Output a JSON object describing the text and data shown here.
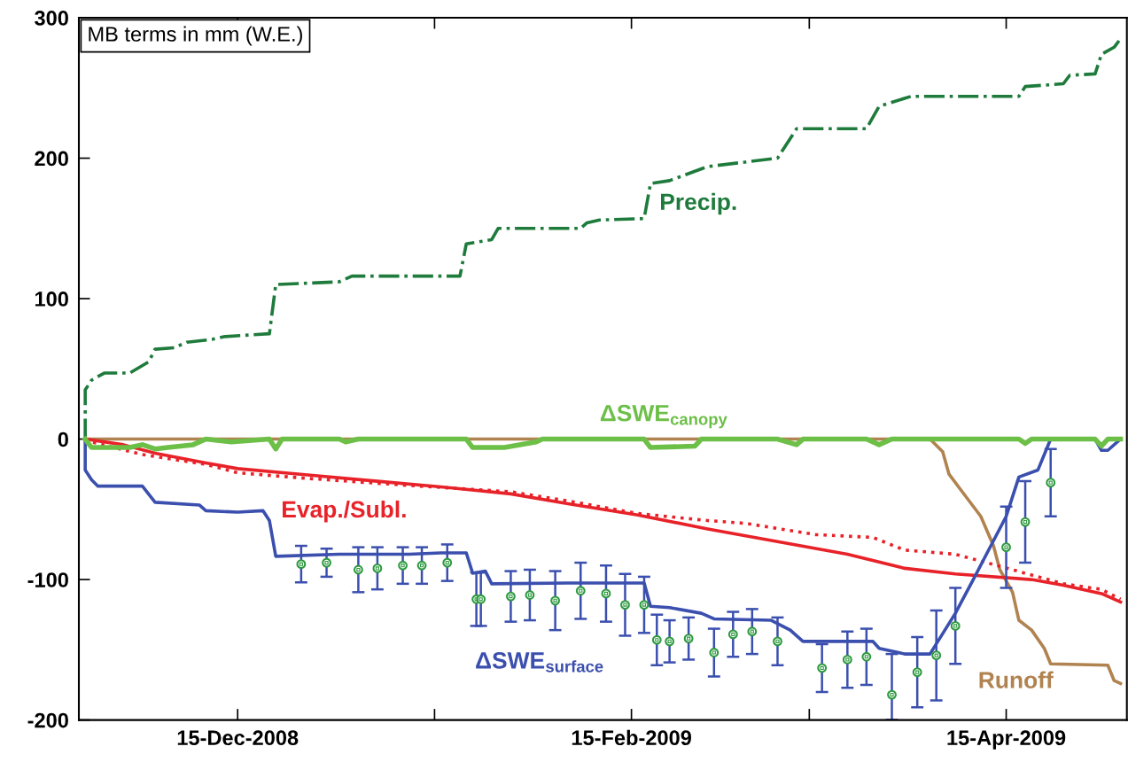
{
  "chart_data": {
    "type": "line",
    "title": "MB terms in mm (W.E.)",
    "xlim": [
      "2008-11-20",
      "2009-05-04"
    ],
    "xticks": [
      {
        "value": "2008-12-15",
        "label": "15-Dec-2008"
      },
      {
        "value": "2009-01-15",
        "label": null
      },
      {
        "value": "2009-02-15",
        "label": "15-Feb-2009"
      },
      {
        "value": "2009-03-15",
        "label": null
      },
      {
        "value": "2009-04-15",
        "label": "15-Apr-2009"
      }
    ],
    "ylim": [
      -200,
      300
    ],
    "yticks": [
      -200,
      -100,
      0,
      100,
      200,
      300
    ],
    "grid": false,
    "legend": false,
    "series": [
      {
        "name": "Precip.",
        "color": "#1e7b3c",
        "line_style": "dashdot",
        "marker": "none",
        "x": [
          "2008-11-21",
          "2008-11-21",
          "2008-11-22",
          "2008-11-24",
          "2008-11-28",
          "2008-12-01",
          "2008-12-02",
          "2008-12-05",
          "2008-12-07",
          "2008-12-11",
          "2008-12-13",
          "2008-12-20",
          "2008-12-21",
          "2008-12-31",
          "2009-01-02",
          "2009-01-19",
          "2009-01-20",
          "2009-01-24",
          "2009-01-25",
          "2009-02-07",
          "2009-02-08",
          "2009-02-10",
          "2009-02-17",
          "2009-02-18",
          "2009-02-21",
          "2009-02-27",
          "2009-03-10",
          "2009-03-13",
          "2009-03-24",
          "2009-03-26",
          "2009-03-31",
          "2009-04-17",
          "2009-04-18",
          "2009-04-24",
          "2009-04-25",
          "2009-04-29",
          "2009-04-30",
          "2009-05-02",
          "2009-05-03"
        ],
        "values": [
          0,
          35,
          42,
          47,
          47,
          55,
          64,
          65,
          69,
          71,
          73,
          75,
          110,
          112,
          116,
          116,
          139,
          142,
          150,
          150,
          154,
          156,
          157,
          182,
          184,
          194,
          200,
          221,
          221,
          237,
          244,
          244,
          251,
          253,
          259,
          260,
          274,
          279,
          285
        ]
      },
      {
        "name": "Runoff",
        "color": "#b08350",
        "line_style": "solid",
        "marker": "none",
        "x": [
          "2008-11-21",
          "2009-04-03",
          "2009-04-05",
          "2009-04-06",
          "2009-04-08",
          "2009-04-11",
          "2009-04-13",
          "2009-04-14",
          "2009-04-16",
          "2009-04-17",
          "2009-04-19",
          "2009-04-21",
          "2009-04-22",
          "2009-05-01",
          "2009-05-02",
          "2009-05-03"
        ],
        "values": [
          0,
          0,
          -9,
          -25,
          -37,
          -55,
          -76,
          -93,
          -109,
          -129,
          -136,
          -149,
          -160,
          -161,
          -172,
          -174
        ]
      },
      {
        "color": "#e82229",
        "line_style": "dotted",
        "marker": "none",
        "x": [
          "2008-11-21",
          "2008-11-22",
          "2008-11-30",
          "2008-12-10",
          "2008-12-15",
          "2008-12-26",
          "2009-01-11",
          "2009-01-27",
          "2009-02-05",
          "2009-02-16",
          "2009-02-27",
          "2009-03-05",
          "2009-03-16",
          "2009-03-25",
          "2009-03-30",
          "2009-04-07",
          "2009-04-16",
          "2009-04-24",
          "2009-04-30",
          "2009-05-03"
        ],
        "values": [
          0,
          -2,
          -11,
          -18,
          -24,
          -28,
          -33,
          -37.5,
          -44,
          -53,
          -58,
          -60,
          -68,
          -70,
          -79,
          -82,
          -93,
          -103,
          -107,
          -114
        ]
      },
      {
        "name": "Evap./Subl.",
        "color": "#e82229",
        "line_style": "solid",
        "marker": "none",
        "x": [
          "2008-11-21",
          "2008-11-27",
          "2008-12-02",
          "2008-12-10",
          "2008-12-15",
          "2008-12-26",
          "2009-01-06",
          "2009-01-16",
          "2009-01-27",
          "2009-02-05",
          "2009-02-16",
          "2009-02-27",
          "2009-03-10",
          "2009-03-21",
          "2009-03-30",
          "2009-04-07",
          "2009-04-19",
          "2009-04-24",
          "2009-04-30",
          "2009-05-03"
        ],
        "values": [
          0,
          -4,
          -10,
          -17,
          -21,
          -25.5,
          -30,
          -34,
          -39,
          -46,
          -54,
          -64,
          -73,
          -82,
          -92,
          -96,
          -100,
          -104,
          -110,
          -116
        ]
      },
      {
        "name": "ΔSWE$_{surface}$",
        "color": "#3b4fae",
        "line_style": "solid",
        "marker": "none",
        "x": [
          "2008-11-21",
          "2008-11-21",
          "2008-11-22",
          "2008-11-23",
          "2008-11-30",
          "2008-12-02",
          "2008-12-09",
          "2008-12-10",
          "2008-12-15",
          "2008-12-19",
          "2008-12-20",
          "2008-12-21",
          "2008-12-31",
          "2009-01-11",
          "2009-01-16",
          "2009-01-20",
          "2009-01-21",
          "2009-01-23",
          "2009-01-24",
          "2009-02-05",
          "2009-02-17",
          "2009-02-18",
          "2009-02-21",
          "2009-02-26",
          "2009-02-28",
          "2009-03-09",
          "2009-03-12",
          "2009-03-14",
          "2009-03-25",
          "2009-03-26",
          "2009-03-30",
          "2009-04-03",
          "2009-04-07",
          "2009-04-10",
          "2009-04-12",
          "2009-04-15",
          "2009-04-17",
          "2009-04-20",
          "2009-04-22",
          "2009-04-29",
          "2009-04-30",
          "2009-05-01",
          "2009-05-03"
        ],
        "values": [
          0,
          -22,
          -29,
          -33.5,
          -33.5,
          -45,
          -47,
          -51,
          -52,
          -51,
          -58,
          -83.5,
          -82,
          -82,
          -81,
          -81,
          -95.5,
          -94,
          -103,
          -102.5,
          -102.5,
          -119,
          -120,
          -124,
          -128,
          -129,
          -136,
          -144,
          -144,
          -149,
          -153,
          -153,
          -124,
          -98.5,
          -81,
          -55,
          -27,
          -22,
          0,
          0,
          -8,
          -8,
          0
        ]
      },
      {
        "color": "#2e9a40",
        "type": "scatter",
        "marker": "circle",
        "x": [
          "2008-12-25",
          "2008-12-29",
          "2009-01-03",
          "2009-01-06",
          "2009-01-10",
          "2009-01-13",
          "2009-01-17",
          "2009-01-21T14:00",
          "2009-01-22T07:00",
          "2009-01-27",
          "2009-01-30",
          "2009-02-03",
          "2009-02-07",
          "2009-02-11",
          "2009-02-14",
          "2009-02-17",
          "2009-02-19",
          "2009-02-21",
          "2009-02-24",
          "2009-02-28",
          "2009-03-03",
          "2009-03-06",
          "2009-03-10",
          "2009-03-17",
          "2009-03-21",
          "2009-03-24",
          "2009-03-28",
          "2009-04-01",
          "2009-04-04",
          "2009-04-07",
          "2009-04-15",
          "2009-04-18",
          "2009-04-22"
        ],
        "values": [
          -89,
          -88,
          -93,
          -92,
          -90,
          -90,
          -88,
          -114,
          -114,
          -112,
          -111,
          -115,
          -108,
          -110,
          -118,
          -118,
          -143,
          -144,
          -142,
          -152,
          -139,
          -137,
          -144,
          -163,
          -157,
          -155,
          -182,
          -166,
          -154,
          -133,
          -77,
          -59,
          -31
        ],
        "errors": [
          13,
          10,
          16,
          15,
          13,
          13,
          13,
          19,
          19,
          18,
          18,
          21,
          20,
          20,
          22,
          20,
          18,
          15,
          15,
          17,
          16,
          16,
          17,
          17,
          20,
          20,
          [
            -200,
            -153
          ],
          25,
          32,
          27,
          29,
          29,
          24
        ]
      },
      {
        "name": "ΔSWE$_{canopy}$",
        "color": "#6cbf47",
        "line_style": "solid",
        "marker": "none",
        "x": [
          "2008-11-21",
          "2008-11-22",
          "2008-11-28",
          "2008-11-30",
          "2008-12-02",
          "2008-12-04",
          "2008-12-08",
          "2008-12-10",
          "2008-12-14",
          "2008-12-20",
          "2008-12-21",
          "2008-12-22",
          "2008-12-31",
          "2009-01-01",
          "2009-01-03",
          "2009-01-20",
          "2009-01-21",
          "2009-01-26",
          "2009-01-31",
          "2009-02-01",
          "2009-02-05",
          "2009-02-17",
          "2009-02-18",
          "2009-02-25",
          "2009-02-26",
          "2009-03-10",
          "2009-03-13",
          "2009-03-14",
          "2009-03-24",
          "2009-03-26",
          "2009-03-28",
          "2009-04-17",
          "2009-04-18",
          "2009-04-19",
          "2009-04-29",
          "2009-04-30",
          "2009-05-01",
          "2009-05-03"
        ],
        "values": [
          0,
          -6,
          -6,
          -4,
          -7,
          -6,
          -4,
          0,
          -2,
          0,
          -7,
          0,
          0,
          -2,
          0,
          0,
          -6,
          -6,
          -2,
          0,
          0,
          0,
          -6,
          -5,
          0,
          0,
          -4,
          0,
          0,
          -4,
          0,
          0,
          -3,
          0,
          0,
          -5,
          0,
          0
        ]
      }
    ]
  }
}
